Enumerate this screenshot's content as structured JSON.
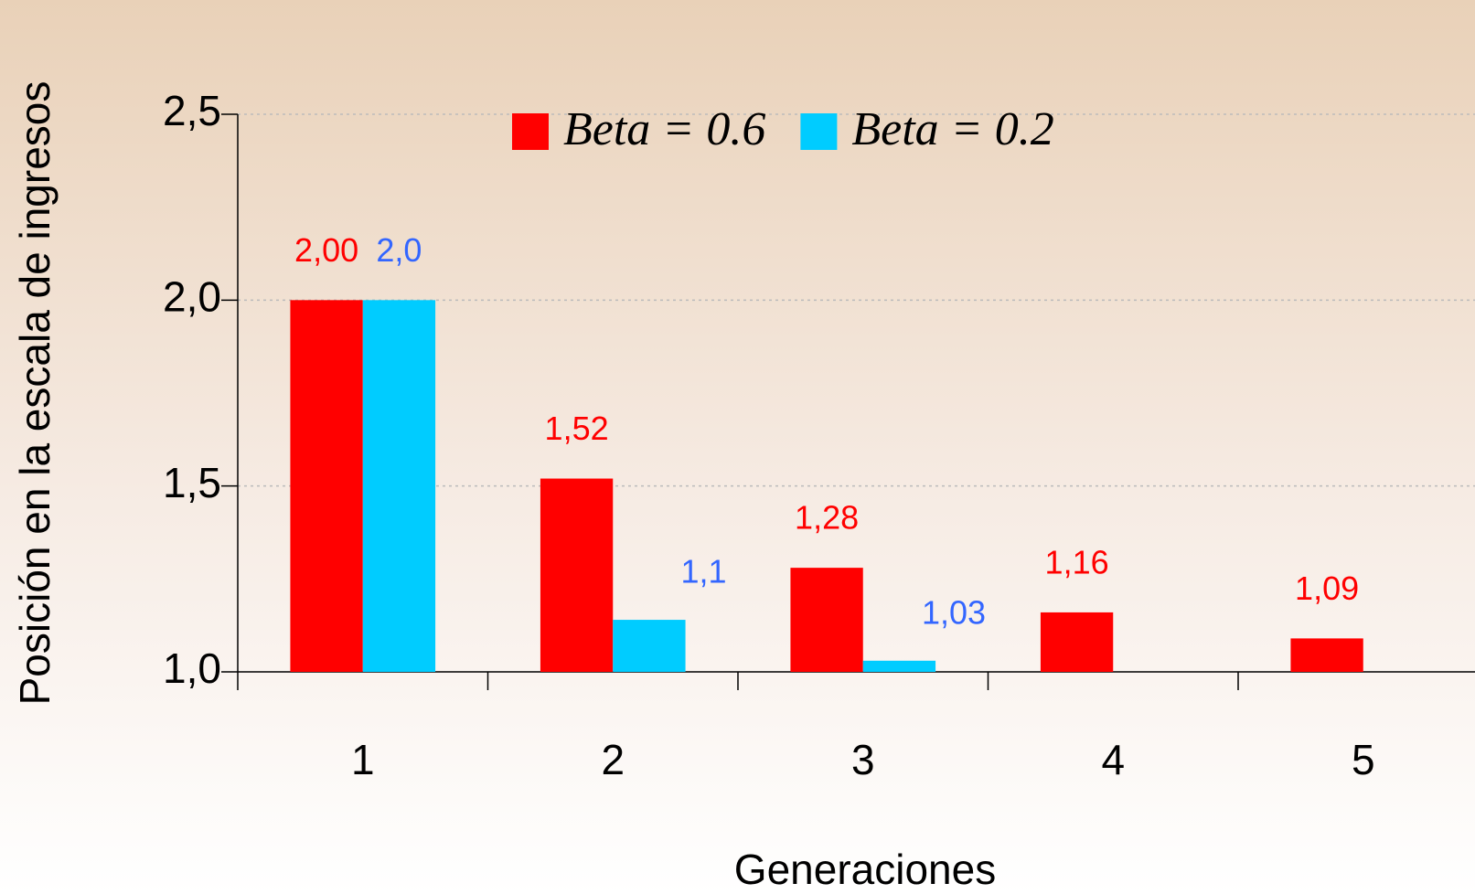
{
  "chart_data": {
    "type": "bar",
    "x_label": "Generaciones",
    "y_label": "Posición en la escala de ingresos",
    "categories": [
      "1",
      "2",
      "3",
      "4",
      "5"
    ],
    "series": [
      {
        "name": "Beta = 0.6",
        "color": "#ff0000",
        "label_color": "#ff0000",
        "values": [
          2.0,
          1.52,
          1.28,
          1.16,
          1.09
        ],
        "value_labels": [
          "2,00",
          "1,52",
          "1,28",
          "1,16",
          "1,09"
        ]
      },
      {
        "name": "Beta = 0.2",
        "color": "#00ccff",
        "label_color": "#3366ff",
        "values": [
          2.0,
          1.14,
          1.03,
          null,
          null
        ],
        "value_labels": [
          "2,0",
          "1,1",
          "1,03",
          null,
          null
        ]
      }
    ],
    "ylim": [
      1.0,
      2.5
    ],
    "yticks": [
      {
        "value": 1.0,
        "label": "1,0"
      },
      {
        "value": 1.5,
        "label": "1,5"
      },
      {
        "value": 2.0,
        "label": "2,0"
      },
      {
        "value": 2.5,
        "label": "2,5"
      }
    ],
    "grid": true,
    "legend": "top"
  }
}
